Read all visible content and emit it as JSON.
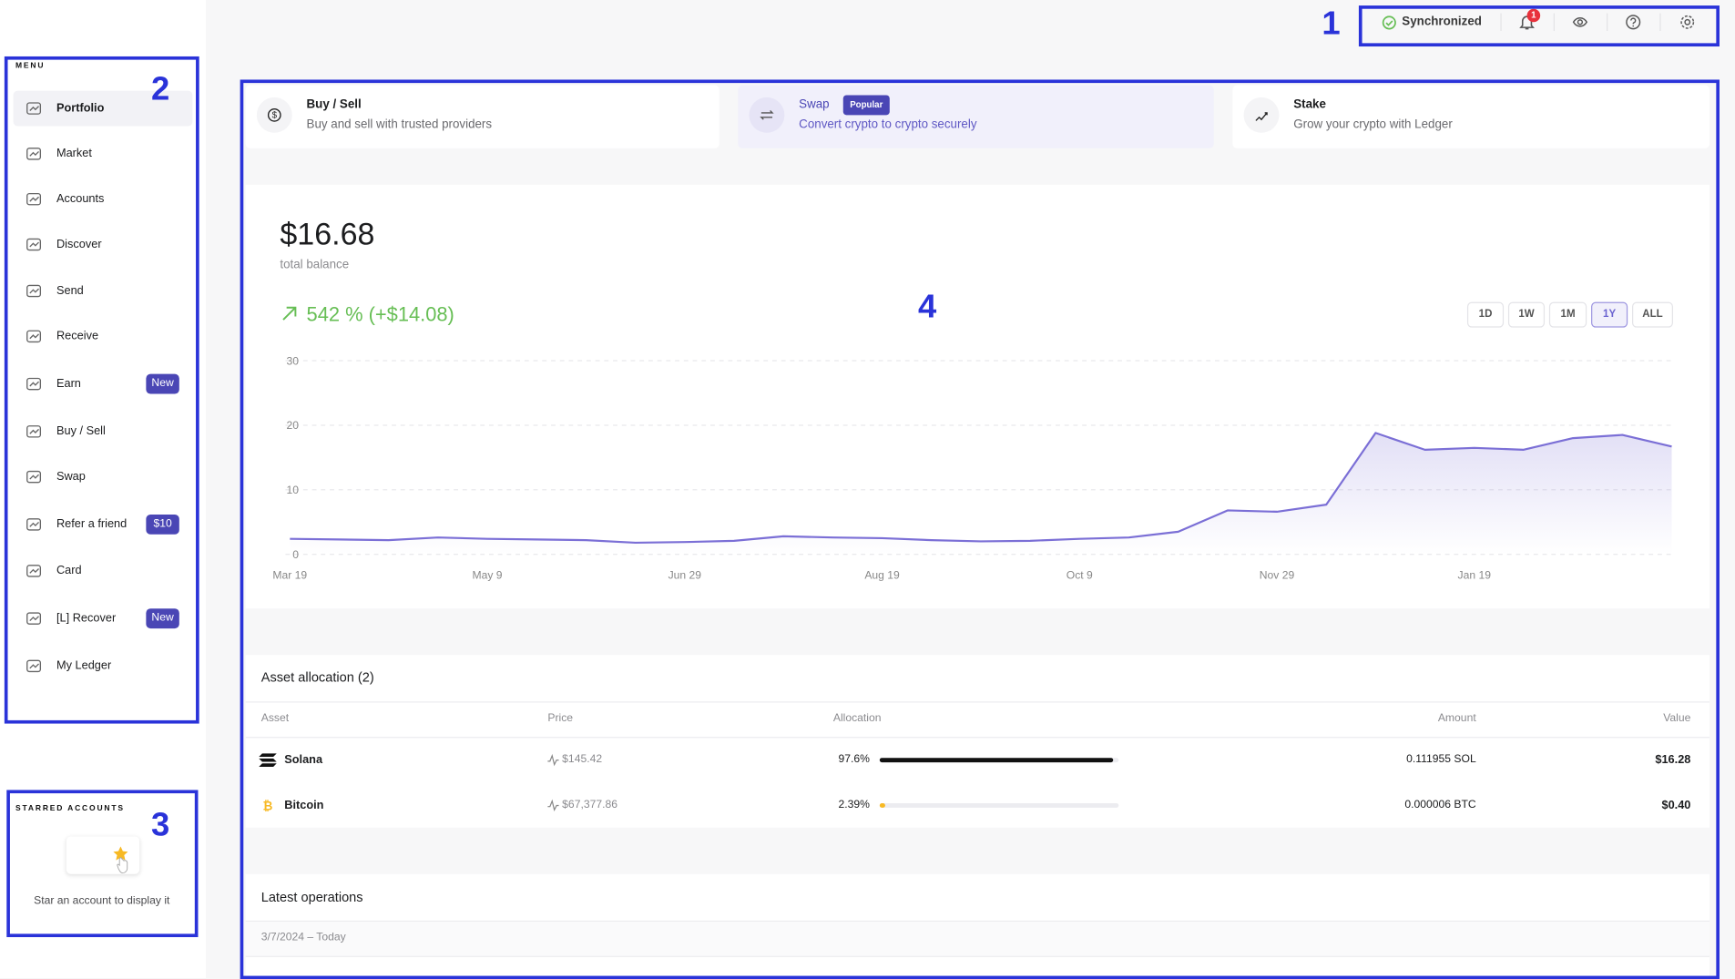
{
  "topbar": {
    "status": "Synchronized",
    "notification_count": "1"
  },
  "annotations": [
    "1",
    "2",
    "3",
    "4"
  ],
  "menu": {
    "title": "MENU",
    "items": [
      {
        "label": "Portfolio"
      },
      {
        "label": "Market"
      },
      {
        "label": "Accounts"
      },
      {
        "label": "Discover"
      },
      {
        "label": "Send"
      },
      {
        "label": "Receive"
      },
      {
        "label": "Earn",
        "badge": "New"
      },
      {
        "label": "Buy / Sell"
      },
      {
        "label": "Swap"
      },
      {
        "label": "Refer a friend",
        "badge": "$10"
      },
      {
        "label": "Card"
      },
      {
        "label": "[L] Recover",
        "badge": "New"
      },
      {
        "label": "My Ledger"
      }
    ]
  },
  "starred": {
    "title": "STARRED ACCOUNTS",
    "empty_text": "Star an account to display it"
  },
  "actions": [
    {
      "title": "Buy / Sell",
      "subtitle": "Buy and sell with trusted providers"
    },
    {
      "title": "Swap",
      "badge": "Popular",
      "subtitle": "Convert crypto to crypto securely"
    },
    {
      "title": "Stake",
      "subtitle": "Grow your crypto with Ledger"
    }
  ],
  "portfolio": {
    "balance": "$16.68",
    "balance_label": "total balance",
    "change": "542 % (+$14.08)",
    "ranges": [
      "1D",
      "1W",
      "1M",
      "1Y",
      "ALL"
    ],
    "selected_range": 3,
    "chart": {
      "type": "line",
      "categories": [
        "Mar 19",
        null,
        null,
        null,
        "May 9",
        null,
        null,
        null,
        "Jun 29",
        null,
        null,
        null,
        "Aug 19",
        null,
        null,
        null,
        "Oct 9",
        null,
        null,
        null,
        "Nov 29",
        null,
        null,
        null,
        "Jan 19",
        null,
        null,
        null,
        null
      ],
      "values": [
        2.4,
        2.3,
        2.2,
        2.6,
        2.4,
        2.3,
        2.2,
        1.8,
        1.9,
        2.1,
        2.8,
        2.6,
        2.5,
        2.2,
        2.0,
        2.1,
        2.4,
        2.6,
        3.5,
        6.8,
        6.6,
        7.7,
        18.8,
        16.2,
        16.5,
        16.2,
        18.0,
        18.5,
        16.7
      ],
      "color": "#7b6fd6",
      "ylim": [
        0,
        30
      ],
      "yticks": [
        0,
        10,
        20,
        30
      ],
      "grid": true
    }
  },
  "allocation": {
    "title": "Asset allocation (2)",
    "headers": [
      "Asset",
      "Price",
      "Allocation",
      "Amount",
      "Value"
    ],
    "rows": [
      {
        "asset": "Solana",
        "price": "$145.42",
        "allocation": {
          "value": 97.6,
          "label": "97.6%"
        },
        "amount": "0.111955 SOL",
        "value": "$16.28",
        "color": "#111111"
      },
      {
        "asset": "Bitcoin",
        "price": "$67,377.86",
        "allocation": {
          "value": 2.39,
          "label": "2.39%"
        },
        "amount": "0.000006 BTC",
        "value": "$0.40",
        "color": "#f7b924"
      }
    ]
  },
  "operations": {
    "title": "Latest operations",
    "date_range": "3/7/2024 – Today"
  }
}
